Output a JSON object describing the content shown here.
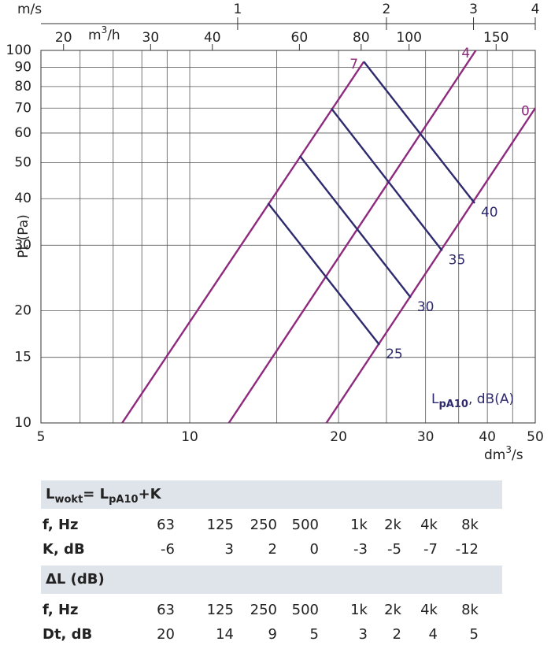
{
  "chart_data": {
    "type": "line",
    "y_label": "Pt (Pa)",
    "x_label": {
      "main": "dm",
      "sup": "3",
      "rest": "/s"
    },
    "xlim": [
      5,
      50
    ],
    "ylim": [
      10,
      100
    ],
    "log_x": true,
    "log_y": true,
    "grid": true,
    "xticks": [
      5,
      10,
      20,
      30,
      40,
      50
    ],
    "xgrid": [
      6,
      7,
      8,
      9,
      15,
      25,
      35,
      45
    ],
    "yticks": [
      10,
      15,
      20,
      30,
      40,
      50,
      60,
      70,
      80,
      90,
      100
    ],
    "top_axis_1": {
      "unit": "m/s",
      "lim": [
        0.4,
        4
      ],
      "ticks": [
        1,
        2,
        3,
        4
      ]
    },
    "top_axis_2": {
      "unit": {
        "main": "m",
        "sup": "3",
        "rest": "/h"
      },
      "lim": [
        18,
        180
      ],
      "ticks": [
        20,
        30,
        40,
        60,
        80,
        100,
        150
      ]
    },
    "series": [
      {
        "name": "7",
        "color": "#8e2a7e",
        "x": [
          7.3,
          22.5
        ],
        "values": [
          10,
          93.3
        ]
      },
      {
        "name": "4",
        "color": "#8e2a7e",
        "x": [
          12,
          37.9
        ],
        "values": [
          10,
          100
        ]
      },
      {
        "name": "0",
        "color": "#8e2a7e",
        "x": [
          18.9,
          50
        ],
        "values": [
          10,
          70
        ]
      }
    ],
    "level_series": [
      {
        "name": "40",
        "color": "#2e2a6e",
        "x": [
          22.5,
          37.7
        ],
        "values": [
          93.3,
          38.9
        ]
      },
      {
        "name": "35",
        "color": "#2e2a6e",
        "x": [
          19.35,
          32.4
        ],
        "values": [
          69.8,
          29
        ]
      },
      {
        "name": "30",
        "color": "#2e2a6e",
        "x": [
          16.7,
          28
        ],
        "values": [
          52.1,
          21.7
        ]
      },
      {
        "name": "25",
        "color": "#2e2a6e",
        "x": [
          14.4,
          24.2
        ],
        "values": [
          38.9,
          16.2
        ]
      }
    ],
    "level_title": {
      "main": "L",
      "sub": "pA10",
      "rest": ", dB(A)"
    }
  },
  "tables": [
    {
      "title": {
        "a": "L",
        "a_sub": "wokt",
        "b": "= L",
        "b_sub": "pA10",
        "c": "+K"
      },
      "rows": [
        [
          "f, Hz",
          "63",
          "125",
          "250",
          "500",
          "1k",
          "2k",
          "4k",
          "8k"
        ],
        [
          "K, dB",
          "-6",
          "3",
          "2",
          "0",
          "-3",
          "-5",
          "-7",
          "-12"
        ]
      ]
    },
    {
      "title": {
        "a": "ΔL (dB)"
      },
      "rows": [
        [
          "f, Hz",
          "63",
          "125",
          "250",
          "500",
          "1k",
          "2k",
          "4k",
          "8k"
        ],
        [
          "Dt, dB",
          "20",
          "14",
          "9",
          "5",
          "3",
          "2",
          "4",
          "5"
        ]
      ]
    }
  ]
}
